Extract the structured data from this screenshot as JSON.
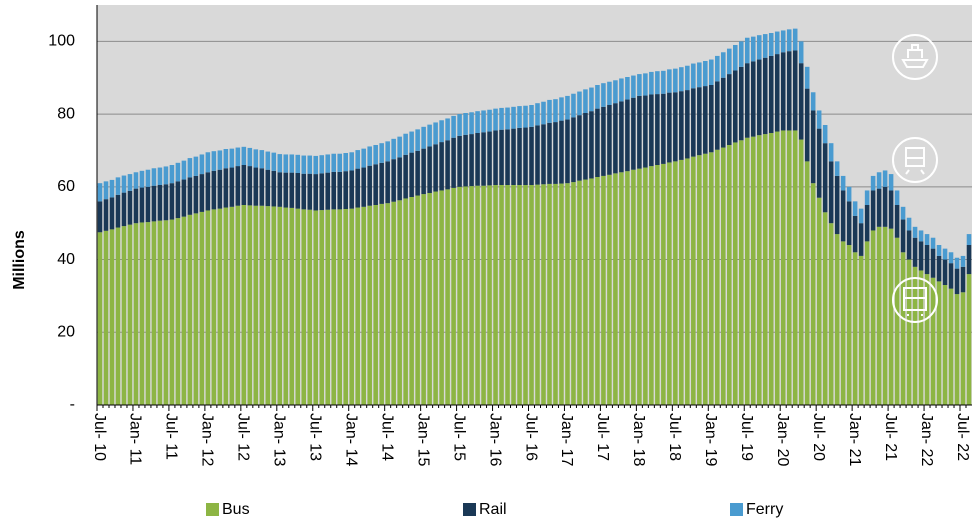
{
  "chart_data": {
    "type": "bar",
    "stacked": true,
    "y_label": "Millions",
    "categories": [
      "Jul- 10",
      null,
      null,
      null,
      null,
      null,
      "Jan- 11",
      null,
      null,
      null,
      null,
      null,
      "Jul- 11",
      null,
      null,
      null,
      null,
      null,
      "Jan- 12",
      null,
      null,
      null,
      null,
      null,
      "Jul- 12",
      null,
      null,
      null,
      null,
      null,
      "Jan- 13",
      null,
      null,
      null,
      null,
      null,
      "Jul- 13",
      null,
      null,
      null,
      null,
      null,
      "Jan- 14",
      null,
      null,
      null,
      null,
      null,
      "Jul- 14",
      null,
      null,
      null,
      null,
      null,
      "Jan- 15",
      null,
      null,
      null,
      null,
      null,
      "Jul- 15",
      null,
      null,
      null,
      null,
      null,
      "Jan- 16",
      null,
      null,
      null,
      null,
      null,
      "Jul- 16",
      null,
      null,
      null,
      null,
      null,
      "Jan- 17",
      null,
      null,
      null,
      null,
      null,
      "Jul- 17",
      null,
      null,
      null,
      null,
      null,
      "Jan- 18",
      null,
      null,
      null,
      null,
      null,
      "Jul- 18",
      null,
      null,
      null,
      null,
      null,
      "Jan- 19",
      null,
      null,
      null,
      null,
      null,
      "Jul- 19",
      null,
      null,
      null,
      null,
      null,
      "Jan- 20",
      null,
      null,
      null,
      null,
      null,
      "Jul- 20",
      null,
      null,
      null,
      null,
      null,
      "Jan- 21",
      null,
      null,
      null,
      null,
      null,
      "Jul- 21",
      null,
      null,
      null,
      null,
      null,
      "Jan- 22",
      null,
      null,
      null,
      null,
      null,
      "Jul- 22",
      null
    ],
    "series": [
      {
        "name": "Bus",
        "color": "#8db544",
        "values": [
          47.5,
          47.9,
          48.3,
          48.8,
          49.2,
          49.6,
          50,
          50.2,
          50.3,
          50.5,
          50.7,
          50.8,
          51,
          51.4,
          51.8,
          52.3,
          52.7,
          53.1,
          53.5,
          53.8,
          54,
          54.3,
          54.5,
          54.8,
          55,
          54.9,
          54.8,
          54.8,
          54.7,
          54.6,
          54.5,
          54.3,
          54.2,
          54,
          53.8,
          53.7,
          53.5,
          53.6,
          53.7,
          53.8,
          53.8,
          53.9,
          54,
          54.3,
          54.5,
          54.8,
          55,
          55.3,
          55.5,
          55.9,
          56.3,
          56.8,
          57.2,
          57.6,
          58,
          58.3,
          58.7,
          59,
          59.3,
          59.7,
          60,
          60.1,
          60.2,
          60.3,
          60.3,
          60.4,
          60.5,
          60.5,
          60.5,
          60.5,
          60.5,
          60.5,
          60.5,
          60.6,
          60.7,
          60.8,
          60.8,
          60.9,
          61,
          61.3,
          61.7,
          62,
          62.3,
          62.7,
          63,
          63.3,
          63.7,
          64,
          64.3,
          64.7,
          65,
          65.3,
          65.7,
          66,
          66.3,
          66.7,
          67,
          67.4,
          67.8,
          68.3,
          68.7,
          69.1,
          69.5,
          70.2,
          70.8,
          71.5,
          72.2,
          72.8,
          73.5,
          73.8,
          74.2,
          74.5,
          74.8,
          75.2,
          75.5,
          75.5,
          75.5,
          73,
          67,
          61,
          57,
          53,
          50,
          47,
          45,
          44,
          42,
          41,
          45,
          48,
          49,
          49,
          48.5,
          46,
          42,
          40,
          38,
          37,
          36,
          35,
          34,
          33,
          32,
          30.5,
          31,
          36
        ]
      },
      {
        "name": "Rail",
        "color": "#1a3856",
        "values": [
          8.5,
          8.7,
          8.8,
          9,
          9.2,
          9.3,
          9.5,
          9.6,
          9.7,
          9.8,
          9.8,
          9.9,
          10,
          10.1,
          10.2,
          10.3,
          10.3,
          10.4,
          10.5,
          10.6,
          10.7,
          10.8,
          10.8,
          10.9,
          11,
          10.8,
          10.5,
          10.3,
          10,
          9.8,
          9.5,
          9.6,
          9.7,
          9.8,
          9.8,
          9.9,
          10,
          10.1,
          10.2,
          10.3,
          10.3,
          10.4,
          10.5,
          10.7,
          10.8,
          11,
          11.2,
          11.3,
          11.5,
          11.7,
          11.8,
          12,
          12.2,
          12.3,
          12.5,
          12.8,
          13,
          13.3,
          13.5,
          13.8,
          14,
          14.2,
          14.3,
          14.5,
          14.7,
          14.8,
          15,
          15.2,
          15.3,
          15.5,
          15.7,
          15.8,
          16,
          16.3,
          16.5,
          16.8,
          17,
          17.3,
          17.5,
          17.8,
          18,
          18.3,
          18.5,
          18.8,
          19,
          19.2,
          19.3,
          19.5,
          19.7,
          19.8,
          20,
          19.8,
          19.7,
          19.5,
          19.3,
          19.2,
          19,
          18.9,
          18.8,
          18.8,
          18.7,
          18.6,
          18.5,
          18.8,
          19.2,
          19.5,
          19.8,
          20.2,
          20.5,
          20.7,
          20.8,
          21,
          21.2,
          21.3,
          21.5,
          21.8,
          22,
          21,
          20,
          20,
          19,
          19,
          17,
          16,
          14,
          12,
          10,
          9,
          10,
          11,
          10.5,
          11,
          10.5,
          9,
          9,
          8,
          8,
          8,
          8,
          8,
          7,
          7,
          7,
          7,
          7,
          8
        ]
      },
      {
        "name": "Ferry",
        "color": "#4a9bd0",
        "values": [
          5,
          4.9,
          4.8,
          4.8,
          4.7,
          4.6,
          4.5,
          4.6,
          4.7,
          4.8,
          4.8,
          4.9,
          5,
          5.1,
          5.2,
          5.3,
          5.3,
          5.4,
          5.5,
          5.4,
          5.3,
          5.3,
          5.2,
          5.1,
          5,
          5,
          5,
          5,
          5,
          5,
          5,
          5,
          5,
          5,
          5,
          5,
          5,
          5,
          5,
          5,
          5,
          5,
          5,
          5.1,
          5.2,
          5.3,
          5.3,
          5.4,
          5.5,
          5.6,
          5.7,
          5.8,
          5.8,
          5.9,
          6,
          6,
          6,
          6,
          6,
          6,
          6,
          6,
          6,
          6,
          6,
          6,
          6,
          6,
          6,
          6,
          6,
          6,
          6,
          6.1,
          6.2,
          6.3,
          6.3,
          6.4,
          6.5,
          6.5,
          6.5,
          6.5,
          6.5,
          6.5,
          6.5,
          6.4,
          6.3,
          6.3,
          6.2,
          6.1,
          6,
          6.1,
          6.2,
          6.3,
          6.3,
          6.4,
          6.5,
          6.6,
          6.7,
          6.8,
          6.8,
          6.9,
          7,
          7,
          7,
          7,
          7,
          7,
          7,
          6.8,
          6.7,
          6.5,
          6.3,
          6.2,
          6,
          6,
          6,
          6,
          6,
          5,
          5,
          5,
          5,
          4,
          4,
          4,
          4,
          4,
          4,
          4,
          4.5,
          4.5,
          4.5,
          4,
          3.5,
          3.5,
          3,
          3,
          3,
          3,
          3,
          3,
          3,
          3,
          3,
          3
        ]
      }
    ],
    "ylim": [
      0,
      110
    ],
    "yticks": [
      {
        "value": 0,
        "label": "-"
      },
      20,
      40,
      60,
      80,
      100
    ],
    "grid": true,
    "plot_background": "#d9d9d9",
    "legend": "bottom"
  }
}
